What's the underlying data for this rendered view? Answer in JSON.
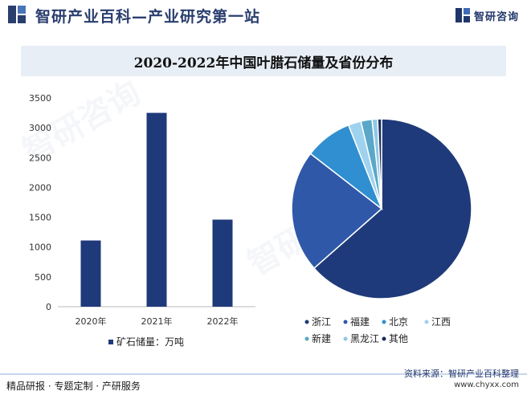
{
  "header": {
    "site_title": "智研产业百科—产业研究第一站",
    "brand_name": "智研咨询"
  },
  "watermark_text": "智研咨询",
  "chart_data": [
    {
      "type": "bar",
      "title": "2020-2022年中国叶腊石储量及省份分布",
      "categories": [
        "2020年",
        "2021年",
        "2022年"
      ],
      "series": [
        {
          "name": "矿石储量：万吨",
          "values": [
            1110,
            3250,
            1460
          ],
          "color": "#1f3a7a"
        }
      ],
      "ylim": [
        0,
        3500
      ],
      "yticks": [
        0,
        500,
        1000,
        1500,
        2000,
        2500,
        3000,
        3500
      ],
      "xlabel": "",
      "ylabel": "",
      "legend": "bottom"
    },
    {
      "type": "pie",
      "slices": [
        {
          "label": "浙江",
          "value": 63.5,
          "color": "#1f3a7a"
        },
        {
          "label": "福建",
          "value": 22.0,
          "color": "#2f58a8"
        },
        {
          "label": "北京",
          "value": 8.5,
          "color": "#2f8fd0"
        },
        {
          "label": "江西",
          "value": 2.3,
          "color": "#9fd2ef"
        },
        {
          "label": "新建",
          "value": 2.0,
          "color": "#5aa7c8"
        },
        {
          "label": "黑龙江",
          "value": 1.0,
          "color": "#8fc8e3"
        },
        {
          "label": "其他",
          "value": 0.7,
          "color": "#152b5c"
        }
      ],
      "legend": "bottom"
    }
  ],
  "footer": {
    "tagline": "精品研报 · 专题定制 · 产研服务",
    "source": "资料来源：智研产业百科整理",
    "url": "www.chyxx.com"
  }
}
